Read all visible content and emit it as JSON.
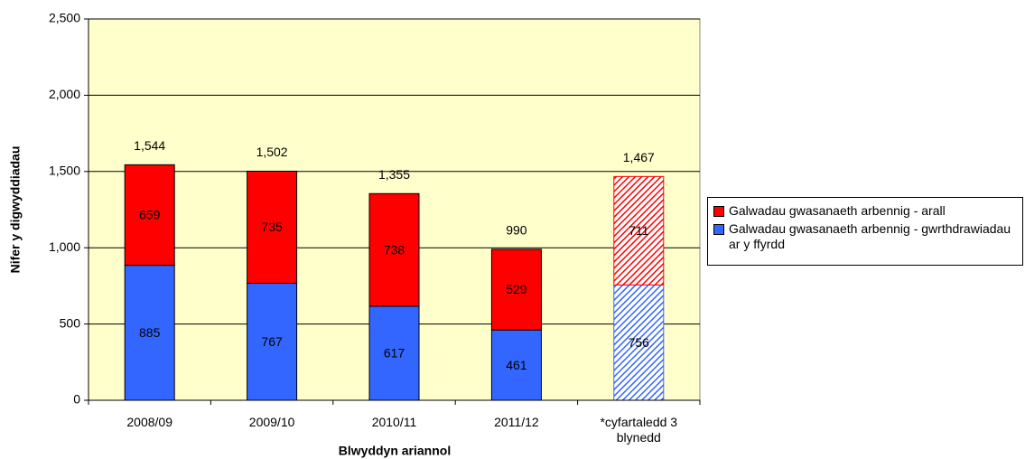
{
  "chart_data": {
    "type": "stacked_bar",
    "ylabel": "Nifer y digwyddiadau",
    "xlabel": "Blwyddyn ariannol",
    "categories": [
      "2008/09",
      "2009/10",
      "2010/11",
      "2011/12",
      "*cyfartaledd 3 blynedd"
    ],
    "series": [
      {
        "name": "Galwadau gwasanaeth arbennig - gwrthdrawiadau ar y ffyrdd",
        "color": "#3366ff",
        "values": [
          885,
          767,
          617,
          461,
          756
        ]
      },
      {
        "name": "Galwadau gwasanaeth arbennig - arall",
        "color": "#ff0000",
        "values": [
          659,
          735,
          738,
          529,
          711
        ]
      }
    ],
    "totals": [
      1544,
      1502,
      1355,
      990,
      1467
    ],
    "total_labels": [
      "1,544",
      "1,502",
      "1,355",
      "990",
      "1,467"
    ],
    "hatched": [
      false,
      false,
      false,
      false,
      true
    ],
    "ylim": [
      0,
      2500
    ],
    "yticks": [
      0,
      500,
      {
        "value": 1000,
        "label": "1,000"
      },
      {
        "value": 1500,
        "label": "1,500"
      },
      {
        "value": 2000,
        "label": "2,000"
      },
      {
        "value": 2500,
        "label": "2,500"
      }
    ],
    "grid": true,
    "plot_background": "#ffffcc",
    "legend": "right"
  }
}
